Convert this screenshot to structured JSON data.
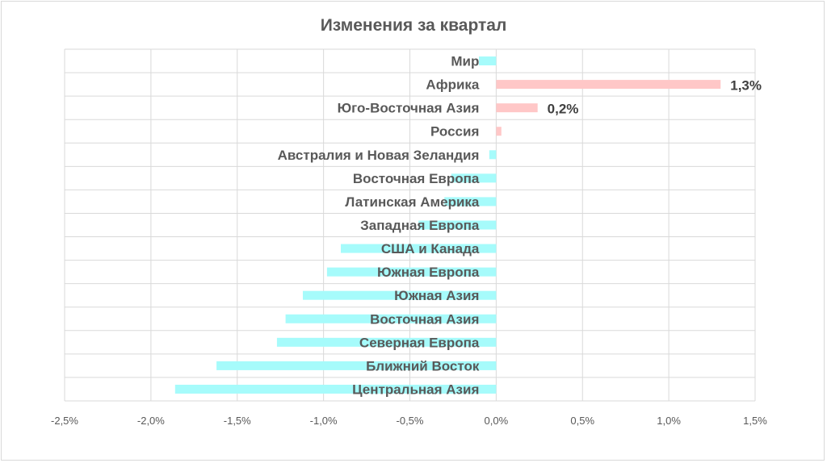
{
  "chart_data": {
    "type": "bar",
    "orientation": "horizontal",
    "title": "Изменения за квартал",
    "categories": [
      "Мир",
      "Африка",
      "Юго-Восточная Азия",
      "Россия",
      "Австралия и Новая Зеландия",
      "Восточная Европа",
      "Латинская Америка",
      "Западная Европа",
      "США и Канада",
      "Южная Европа",
      "Южная Азия",
      "Восточная Азия",
      "Северная Европа",
      "Ближний Восток",
      "Центральная Азия"
    ],
    "values": [
      -0.1,
      1.3,
      0.24,
      0.03,
      -0.04,
      -0.26,
      -0.3,
      -0.45,
      -0.9,
      -0.98,
      -1.12,
      -1.22,
      -1.27,
      -1.62,
      -1.86
    ],
    "data_labels": [
      {
        "category": "Африка",
        "text": "1,3%"
      },
      {
        "category": "Юго-Восточная Азия",
        "text": "0,2%"
      }
    ],
    "x_ticks": [
      "-2,5%",
      "-2,0%",
      "-1,5%",
      "-1,0%",
      "-0,5%",
      "0,0%",
      "0,5%",
      "1,0%",
      "1,5%"
    ],
    "xlim": [
      -2.5,
      1.5
    ],
    "x_tick_step": 0.5,
    "gridlines": true,
    "colors": {
      "positive": "#ffc7c7",
      "negative": "#a6fbfb",
      "grid": "#d9d9d9",
      "text": "#595959"
    }
  }
}
